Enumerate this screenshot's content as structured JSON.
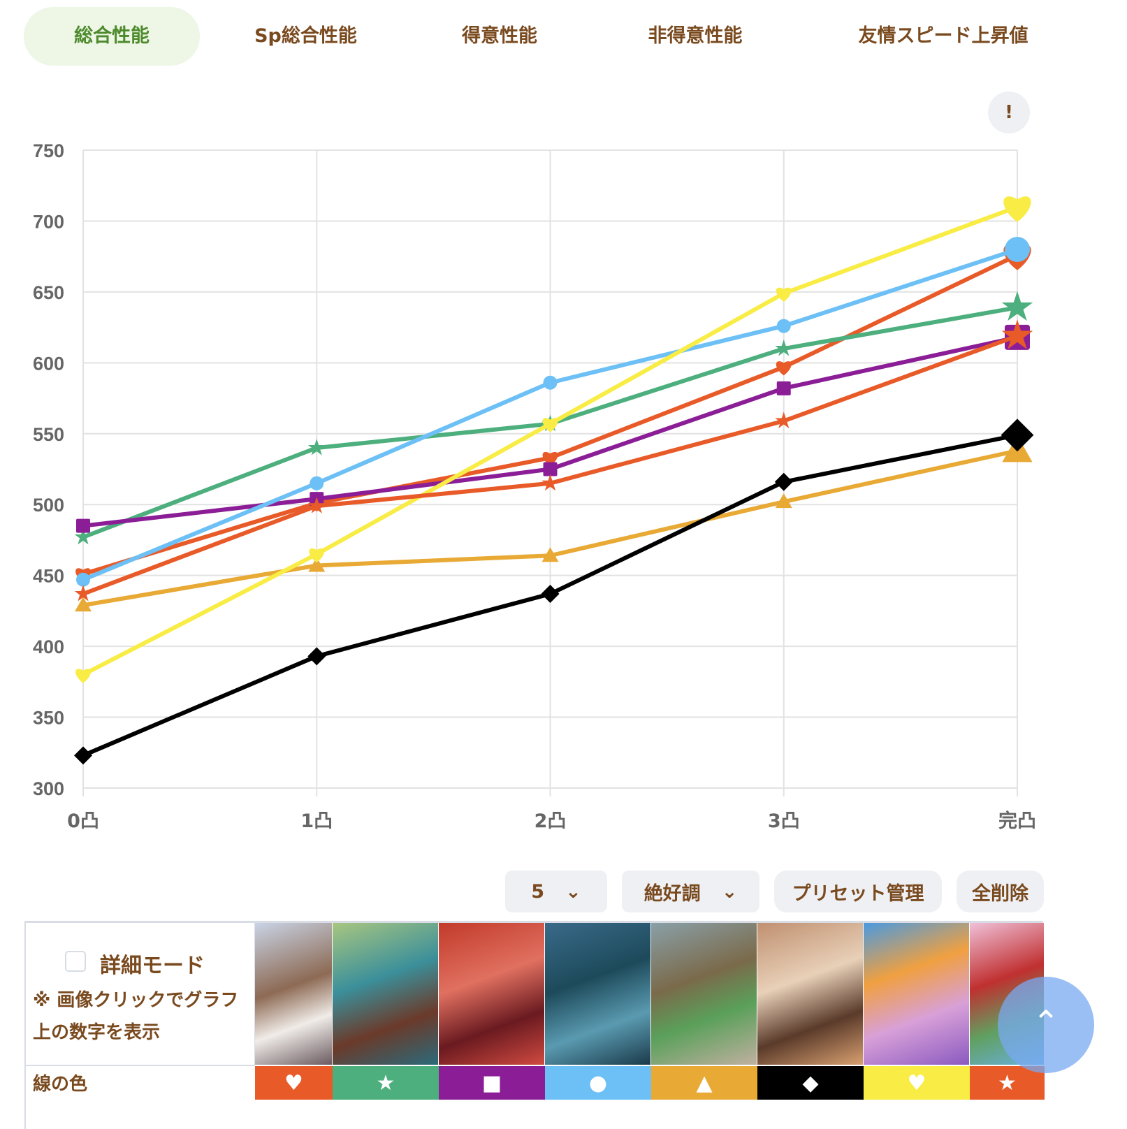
{
  "tabs": [
    {
      "label": "総合性能",
      "active": true
    },
    {
      "label": "Sp総合性能",
      "active": false
    },
    {
      "label": "得意性能",
      "active": false
    },
    {
      "label": "非得意性能",
      "active": false
    },
    {
      "label": "友情スピード上昇値",
      "active": false
    }
  ],
  "info_button": "!",
  "chart_data": {
    "type": "line",
    "categories": [
      "0凸",
      "1凸",
      "2凸",
      "3凸",
      "完凸"
    ],
    "ylim": [
      300,
      750
    ],
    "yticks": [
      "300",
      "350",
      "400",
      "450",
      "500",
      "550",
      "600",
      "650",
      "700",
      "750"
    ],
    "grid": true,
    "series": [
      {
        "name": "card-1",
        "color": "#e85a28",
        "marker": "heart",
        "values": [
          451,
          501,
          533,
          597,
          676
        ]
      },
      {
        "name": "card-2",
        "color": "#4caf7d",
        "marker": "star",
        "values": [
          477,
          540,
          557,
          610,
          639
        ]
      },
      {
        "name": "card-3",
        "color": "#8b1e96",
        "marker": "square",
        "values": [
          485,
          504,
          525,
          582,
          618
        ]
      },
      {
        "name": "card-4",
        "color": "#6cc0f5",
        "marker": "circle",
        "values": [
          447,
          515,
          586,
          626,
          680
        ]
      },
      {
        "name": "card-5",
        "color": "#e8a935",
        "marker": "triangle",
        "values": [
          429,
          457,
          464,
          502,
          538
        ]
      },
      {
        "name": "card-6",
        "color": "#000000",
        "marker": "diamond",
        "values": [
          323,
          393,
          437,
          516,
          549
        ]
      },
      {
        "name": "card-7",
        "color": "#f8ec45",
        "marker": "heart",
        "values": [
          380,
          465,
          557,
          649,
          710
        ]
      },
      {
        "name": "card-8",
        "color": "#e85a28",
        "marker": "star",
        "values": [
          437,
          499,
          515,
          559,
          619
        ]
      }
    ]
  },
  "controls": {
    "level": "5",
    "condition": "絶好調",
    "preset": "プリセット管理",
    "clear": "全削除"
  },
  "table": {
    "detail_mode": "詳細モード",
    "note": "※ 画像クリックでグラフ上の数字を表示",
    "line_color_label": "線の色"
  },
  "cards": [
    {
      "bg": "linear-gradient(160deg,#c9d4e6,#8d6a54 45%,#f0ece8 70%,#6a5a60)"
    },
    {
      "bg": "linear-gradient(160deg,#a8c680,#3b8f9a 40%,#6b3a2a 70%,#2b6a7a)"
    },
    {
      "bg": "linear-gradient(160deg,#c23a2a,#e07060 40%,#6a1a20 70%,#d04a40)"
    },
    {
      "bg": "linear-gradient(160deg,#3a6a8a,#1d4a5a 40%,#5a9ab0 70%,#1a3a4a)"
    },
    {
      "bg": "linear-gradient(160deg,#8aa0a8,#7a6a4a 40%,#5aa05a 65%,#c0b0a0)"
    },
    {
      "bg": "linear-gradient(160deg,#c09070,#e8d0b8 40%,#5a3a2a 70%,#d8a070)"
    },
    {
      "bg": "linear-gradient(160deg,#4a9ae0,#f0a040 35%,#d8a0d8 65%,#8a5ac0)"
    },
    {
      "bg": "linear-gradient(160deg,#f0c0d8,#c03030 40%,#60a060 70%,#6ab0e0)"
    }
  ]
}
